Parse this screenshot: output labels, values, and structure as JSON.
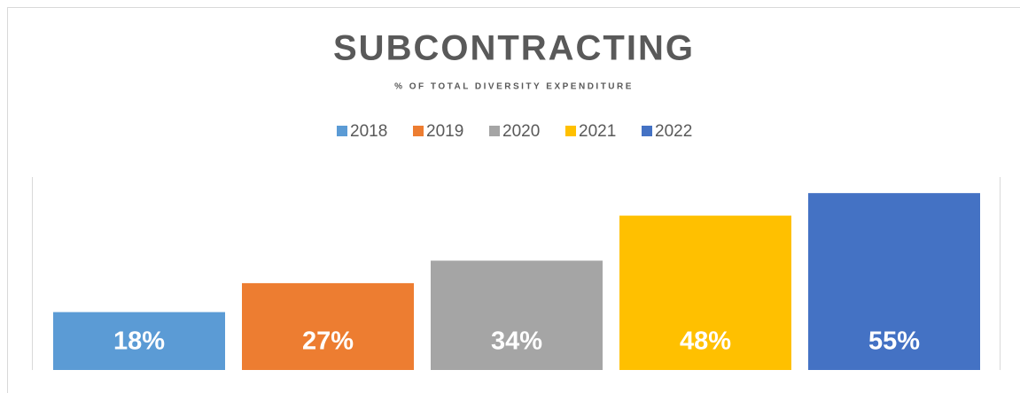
{
  "chart_data": {
    "type": "bar",
    "title": "SUBCONTRACTING",
    "subtitle": "% OF TOTAL DIVERSITY EXPENDITURE",
    "categories": [
      null
    ],
    "series": [
      {
        "name": "2018",
        "color": "#5b9bd5",
        "values": [
          18
        ],
        "value_labels": [
          "18%"
        ]
      },
      {
        "name": "2019",
        "color": "#ed7d31",
        "values": [
          27
        ],
        "value_labels": [
          "27%"
        ]
      },
      {
        "name": "2020",
        "color": "#a5a5a5",
        "values": [
          34
        ],
        "value_labels": [
          "34%"
        ]
      },
      {
        "name": "2021",
        "color": "#ffc000",
        "values": [
          48
        ],
        "value_labels": [
          "48%"
        ]
      },
      {
        "name": "2022",
        "color": "#4472c4",
        "values": [
          55
        ],
        "value_labels": [
          "55%"
        ]
      }
    ],
    "legend": "top"
  }
}
